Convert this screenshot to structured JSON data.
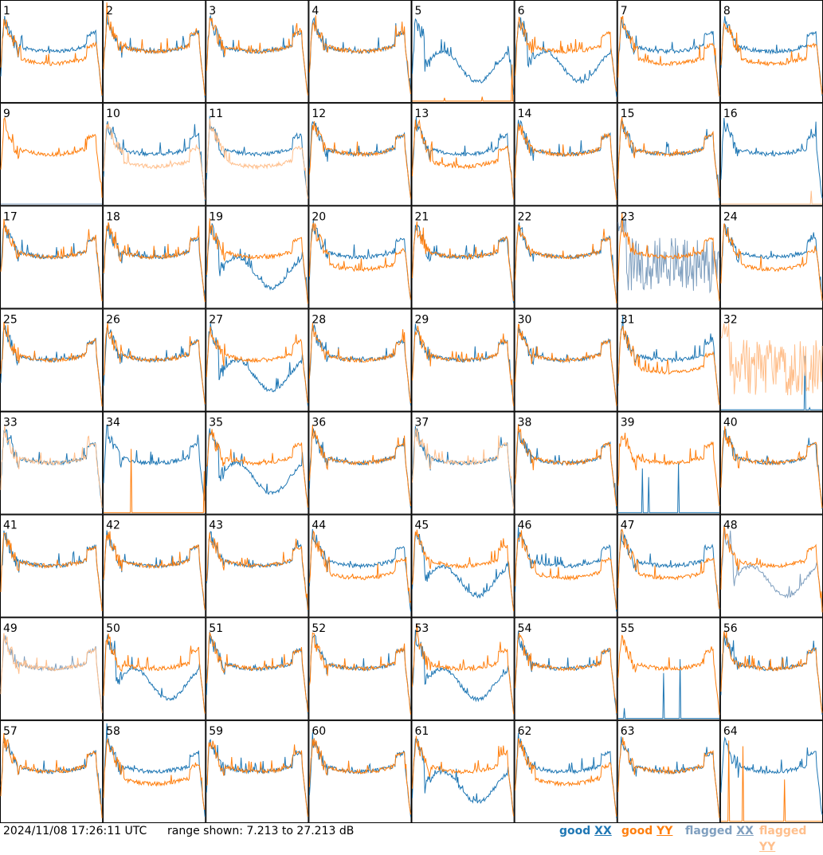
{
  "footer": {
    "timestamp": "2024/11/08 17:26:11 UTC",
    "range": "range shown: 7.213 to 27.213 dB"
  },
  "legend": [
    {
      "id": "good-xx",
      "word": "good",
      "pol": "XX",
      "color": "#1f77b4"
    },
    {
      "id": "good-yy",
      "word": "good",
      "pol": "YY",
      "color": "#ff7f0e"
    },
    {
      "id": "flag-xx",
      "word": "flagged",
      "pol": "XX",
      "color": "#7f9fbf"
    },
    {
      "id": "flag-yy",
      "word": "flagged",
      "pol": "YY",
      "color": "#ffbf8c"
    }
  ],
  "chart_data": {
    "type": "line",
    "grid": "8x8 small multiples",
    "y_range_db": [
      7.213,
      27.213
    ],
    "panels": [
      {
        "id": 1,
        "xx": {
          "s": "default",
          "f": false
        },
        "yy": {
          "s": "lowmid",
          "f": false
        }
      },
      {
        "id": 2,
        "xx": {
          "s": "default",
          "f": false
        },
        "yy": {
          "s": "default",
          "f": false
        }
      },
      {
        "id": 3,
        "xx": {
          "s": "default",
          "f": false
        },
        "yy": {
          "s": "default",
          "f": false
        }
      },
      {
        "id": 4,
        "xx": {
          "s": "default",
          "f": false
        },
        "yy": {
          "s": "default",
          "f": false
        }
      },
      {
        "id": 5,
        "xx": {
          "s": "wavy",
          "f": false
        },
        "yy": {
          "s": "dead",
          "f": false
        }
      },
      {
        "id": 6,
        "xx": {
          "s": "wavy",
          "f": false
        },
        "yy": {
          "s": "default",
          "f": false
        }
      },
      {
        "id": 7,
        "xx": {
          "s": "default",
          "f": false
        },
        "yy": {
          "s": "lowmid",
          "f": false
        }
      },
      {
        "id": 8,
        "xx": {
          "s": "default",
          "f": false
        },
        "yy": {
          "s": "lowmid",
          "f": false
        }
      },
      {
        "id": 9,
        "xx": {
          "s": "dead",
          "f": true
        },
        "yy": {
          "s": "default",
          "f": false
        }
      },
      {
        "id": 10,
        "xx": {
          "s": "default",
          "f": false
        },
        "yy": {
          "s": "lowmid",
          "f": true
        }
      },
      {
        "id": 11,
        "xx": {
          "s": "default",
          "f": false
        },
        "yy": {
          "s": "lowmid",
          "f": true
        }
      },
      {
        "id": 12,
        "xx": {
          "s": "default",
          "f": false
        },
        "yy": {
          "s": "default",
          "f": false
        }
      },
      {
        "id": 13,
        "xx": {
          "s": "default",
          "f": false
        },
        "yy": {
          "s": "lowmid",
          "f": false
        }
      },
      {
        "id": 14,
        "xx": {
          "s": "default",
          "f": false
        },
        "yy": {
          "s": "default",
          "f": false
        }
      },
      {
        "id": 15,
        "xx": {
          "s": "default",
          "f": false
        },
        "yy": {
          "s": "default",
          "f": false
        }
      },
      {
        "id": 16,
        "xx": {
          "s": "default",
          "f": false
        },
        "yy": {
          "s": "dead",
          "f": true
        }
      },
      {
        "id": 17,
        "xx": {
          "s": "default",
          "f": false
        },
        "yy": {
          "s": "default",
          "f": false
        }
      },
      {
        "id": 18,
        "xx": {
          "s": "default",
          "f": false
        },
        "yy": {
          "s": "default",
          "f": false
        }
      },
      {
        "id": 19,
        "xx": {
          "s": "wavy",
          "f": false
        },
        "yy": {
          "s": "default",
          "f": false
        }
      },
      {
        "id": 20,
        "xx": {
          "s": "default",
          "f": false
        },
        "yy": {
          "s": "lowmid",
          "f": false
        }
      },
      {
        "id": 21,
        "xx": {
          "s": "default",
          "f": false
        },
        "yy": {
          "s": "default",
          "f": false
        }
      },
      {
        "id": 22,
        "xx": {
          "s": "default",
          "f": false
        },
        "yy": {
          "s": "default",
          "f": false
        }
      },
      {
        "id": 23,
        "xx": {
          "s": "noisy",
          "f": true
        },
        "yy": {
          "s": "default",
          "f": false
        }
      },
      {
        "id": 24,
        "xx": {
          "s": "default",
          "f": false
        },
        "yy": {
          "s": "lowmid",
          "f": false
        }
      },
      {
        "id": 25,
        "xx": {
          "s": "default",
          "f": false
        },
        "yy": {
          "s": "default",
          "f": false
        }
      },
      {
        "id": 26,
        "xx": {
          "s": "default",
          "f": false
        },
        "yy": {
          "s": "default",
          "f": false
        }
      },
      {
        "id": 27,
        "xx": {
          "s": "wavy",
          "f": false
        },
        "yy": {
          "s": "default",
          "f": false
        }
      },
      {
        "id": 28,
        "xx": {
          "s": "default",
          "f": false
        },
        "yy": {
          "s": "default",
          "f": false
        }
      },
      {
        "id": 29,
        "xx": {
          "s": "default",
          "f": false
        },
        "yy": {
          "s": "default",
          "f": false
        }
      },
      {
        "id": 30,
        "xx": {
          "s": "default",
          "f": false
        },
        "yy": {
          "s": "default",
          "f": false
        }
      },
      {
        "id": 31,
        "xx": {
          "s": "default",
          "f": false
        },
        "yy": {
          "s": "lowmid",
          "f": false
        }
      },
      {
        "id": 32,
        "xx": {
          "s": "dead",
          "f": false
        },
        "yy": {
          "s": "noisy",
          "f": true
        }
      },
      {
        "id": 33,
        "xx": {
          "s": "default",
          "f": false
        },
        "yy": {
          "s": "default",
          "f": true
        }
      },
      {
        "id": 34,
        "xx": {
          "s": "default",
          "f": false
        },
        "yy": {
          "s": "dead",
          "f": false
        }
      },
      {
        "id": 35,
        "xx": {
          "s": "wavy",
          "f": false
        },
        "yy": {
          "s": "default",
          "f": false
        }
      },
      {
        "id": 36,
        "xx": {
          "s": "default",
          "f": false
        },
        "yy": {
          "s": "default",
          "f": false
        }
      },
      {
        "id": 37,
        "xx": {
          "s": "default",
          "f": false
        },
        "yy": {
          "s": "default",
          "f": true
        }
      },
      {
        "id": 38,
        "xx": {
          "s": "default",
          "f": false
        },
        "yy": {
          "s": "default",
          "f": false
        }
      },
      {
        "id": 39,
        "xx": {
          "s": "dead",
          "f": false
        },
        "yy": {
          "s": "default",
          "f": false
        }
      },
      {
        "id": 40,
        "xx": {
          "s": "default",
          "f": false
        },
        "yy": {
          "s": "default",
          "f": false
        }
      },
      {
        "id": 41,
        "xx": {
          "s": "default",
          "f": false
        },
        "yy": {
          "s": "default",
          "f": false
        }
      },
      {
        "id": 42,
        "xx": {
          "s": "default",
          "f": false
        },
        "yy": {
          "s": "default",
          "f": false
        }
      },
      {
        "id": 43,
        "xx": {
          "s": "default",
          "f": false
        },
        "yy": {
          "s": "default",
          "f": false
        }
      },
      {
        "id": 44,
        "xx": {
          "s": "default",
          "f": false
        },
        "yy": {
          "s": "lowmid",
          "f": false
        }
      },
      {
        "id": 45,
        "xx": {
          "s": "wavy",
          "f": false
        },
        "yy": {
          "s": "default",
          "f": false
        }
      },
      {
        "id": 46,
        "xx": {
          "s": "default",
          "f": false
        },
        "yy": {
          "s": "lowmid",
          "f": false
        }
      },
      {
        "id": 47,
        "xx": {
          "s": "default",
          "f": false
        },
        "yy": {
          "s": "lowmid",
          "f": false
        }
      },
      {
        "id": 48,
        "xx": {
          "s": "wavy",
          "f": true
        },
        "yy": {
          "s": "default",
          "f": false
        }
      },
      {
        "id": 49,
        "xx": {
          "s": "default",
          "f": true
        },
        "yy": {
          "s": "default",
          "f": true
        }
      },
      {
        "id": 50,
        "xx": {
          "s": "wavy",
          "f": false
        },
        "yy": {
          "s": "default",
          "f": false
        }
      },
      {
        "id": 51,
        "xx": {
          "s": "default",
          "f": false
        },
        "yy": {
          "s": "default",
          "f": false
        }
      },
      {
        "id": 52,
        "xx": {
          "s": "default",
          "f": false
        },
        "yy": {
          "s": "default",
          "f": false
        }
      },
      {
        "id": 53,
        "xx": {
          "s": "wavy",
          "f": false
        },
        "yy": {
          "s": "default",
          "f": false
        }
      },
      {
        "id": 54,
        "xx": {
          "s": "default",
          "f": false
        },
        "yy": {
          "s": "default",
          "f": false
        }
      },
      {
        "id": 55,
        "xx": {
          "s": "dead",
          "f": false
        },
        "yy": {
          "s": "default",
          "f": false
        }
      },
      {
        "id": 56,
        "xx": {
          "s": "default",
          "f": false
        },
        "yy": {
          "s": "default",
          "f": false
        }
      },
      {
        "id": 57,
        "xx": {
          "s": "default",
          "f": false
        },
        "yy": {
          "s": "default",
          "f": false
        }
      },
      {
        "id": 58,
        "xx": {
          "s": "default",
          "f": false
        },
        "yy": {
          "s": "lowmid",
          "f": false
        }
      },
      {
        "id": 59,
        "xx": {
          "s": "default",
          "f": false
        },
        "yy": {
          "s": "default",
          "f": false
        }
      },
      {
        "id": 60,
        "xx": {
          "s": "default",
          "f": false
        },
        "yy": {
          "s": "default",
          "f": false
        }
      },
      {
        "id": 61,
        "xx": {
          "s": "wavy",
          "f": false
        },
        "yy": {
          "s": "default",
          "f": false
        }
      },
      {
        "id": 62,
        "xx": {
          "s": "default",
          "f": false
        },
        "yy": {
          "s": "lowmid",
          "f": false
        }
      },
      {
        "id": 63,
        "xx": {
          "s": "default",
          "f": false
        },
        "yy": {
          "s": "default",
          "f": false
        }
      },
      {
        "id": 64,
        "xx": {
          "s": "default",
          "f": false
        },
        "yy": {
          "s": "dead",
          "f": false
        }
      }
    ]
  }
}
